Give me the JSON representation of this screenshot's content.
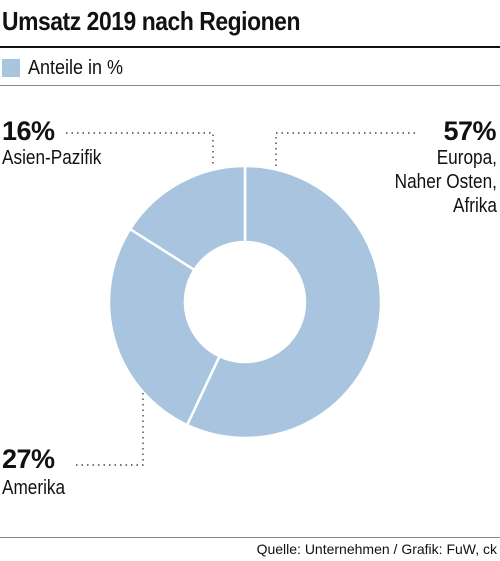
{
  "colors": {
    "slice": "#a8c4de",
    "leader": "#444444"
  },
  "chart_data": {
    "type": "pie",
    "title": "Umsatz 2019 nach Regionen",
    "legend": {
      "label": "Anteile in %",
      "placement": "top-left"
    },
    "categories": [
      "Europa, Naher Osten, Afrika",
      "Amerika",
      "Asien-Pazifik"
    ],
    "values": [
      57,
      27,
      16
    ],
    "unit": "%",
    "slice_labels": [
      {
        "percent": "57%",
        "lines": [
          "Europa,",
          "Naher Osten,",
          "Afrika"
        ]
      },
      {
        "percent": "27%",
        "lines": [
          "Amerika"
        ]
      },
      {
        "percent": "16%",
        "lines": [
          "Asien-Pazifik"
        ]
      }
    ],
    "source": "Quelle: Unternehmen / Grafik: FuW, ck"
  }
}
